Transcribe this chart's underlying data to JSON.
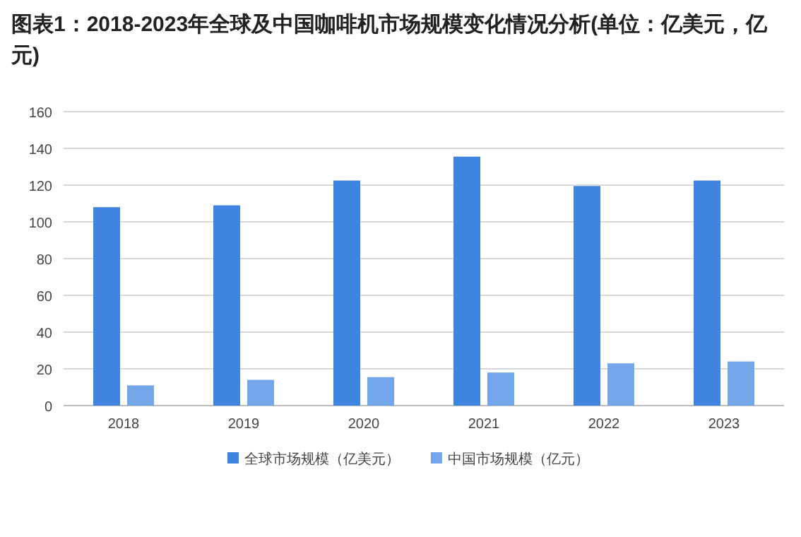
{
  "chart_data": {
    "type": "bar",
    "title": "图表1：2018-2023年全球及中国咖啡机市场规模变化情况分析(单位：亿美元，亿元)",
    "categories": [
      "2018",
      "2019",
      "2020",
      "2021",
      "2022",
      "2023"
    ],
    "series": [
      {
        "name": "全球市场规模（亿美元）",
        "color": "#3f84e0",
        "values": [
          108,
          109,
          122.5,
          135.5,
          119.5,
          122.5
        ]
      },
      {
        "name": "中国市场规模（亿元）",
        "color": "#74a7ea",
        "values": [
          11,
          14,
          15.5,
          18,
          23,
          24
        ]
      }
    ],
    "ylim": [
      0,
      160
    ],
    "yticks": [
      0,
      20,
      40,
      60,
      80,
      100,
      120,
      140,
      160
    ],
    "grid": "y",
    "legend": "bottom"
  }
}
